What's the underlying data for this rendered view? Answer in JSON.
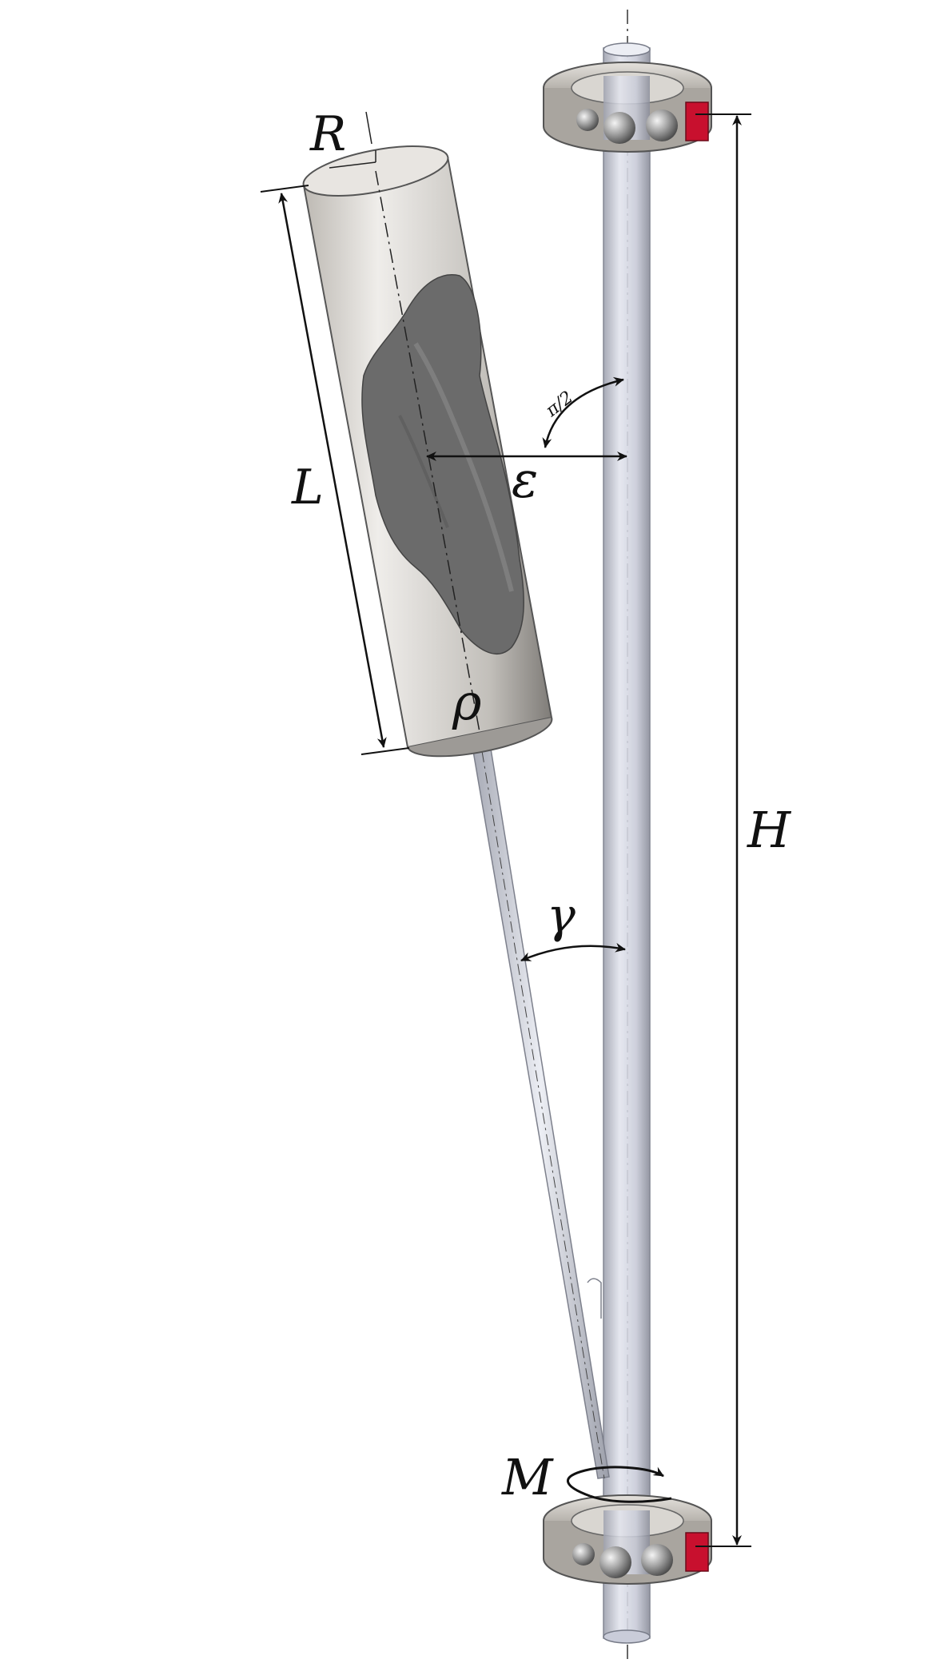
{
  "labels": {
    "R": "R",
    "L": "L",
    "rho": "ρ",
    "epsilon": "ε",
    "pi_over_2": "π/2",
    "gamma": "γ",
    "H": "H",
    "M": "M"
  },
  "colors": {
    "cylinder_body": "#c9c6c2",
    "cylinder_shadow": "#8f8c88",
    "cylinder_top": "#e6e3df",
    "cavity": "#6b6b6b",
    "shaft": "#c9ccd9",
    "shaft_edge": "#8a8d9a",
    "rod": "#d3d5de",
    "bearing": "#b8b5b0",
    "bearing_ball": "#9a9a9a",
    "bearing_clip": "#c8102e",
    "dimension_line": "#111111"
  }
}
